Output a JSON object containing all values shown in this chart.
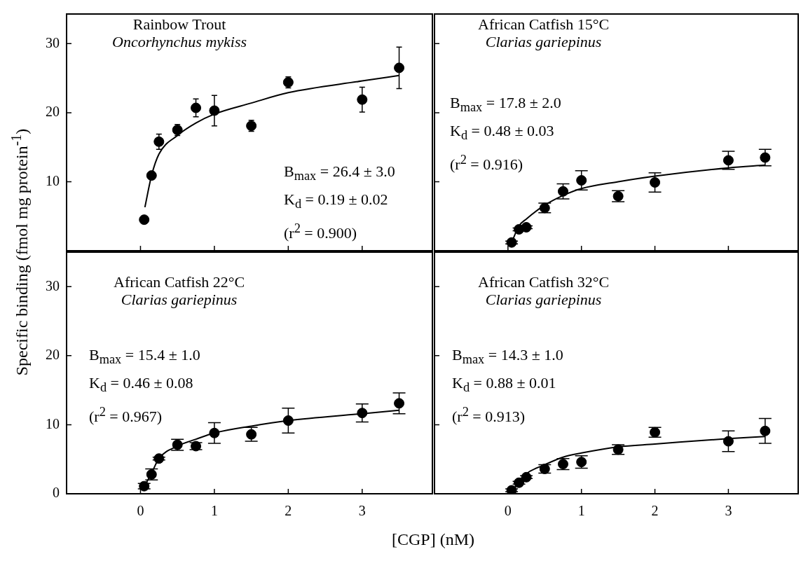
{
  "chart_data": [
    {
      "type": "scatter",
      "title": "Rainbow Trout",
      "subtitle": "Oncorhynchus mykiss",
      "ylabel": "Specific binding (fmol mg protein$^{-1}$)",
      "xlim": [
        -1,
        3.95
      ],
      "xticks": [
        0,
        1,
        2,
        3
      ],
      "ylim": [
        0,
        34.3
      ],
      "yticks": [
        10,
        20,
        30
      ],
      "tick_labels": "y",
      "annotations": [
        "B$_{max}$ = 26.4 ± 3.0",
        "K$_{d}$ = 0.19 ± 0.02",
        "(r$^{2}$ = 0.900)"
      ],
      "series": [
        {
          "type": "scatter",
          "color": "#000000",
          "marker": "circle",
          "x": [
            0.05,
            0.15,
            0.25,
            0.5,
            0.75,
            1,
            1.5,
            2,
            3,
            3.5
          ],
          "values": [
            4.5,
            10.9,
            15.8,
            17.5,
            20.7,
            20.3,
            18.1,
            24.4,
            21.9,
            26.5
          ],
          "errors": [
            null,
            null,
            1.1,
            0.8,
            1.3,
            2.2,
            0.8,
            0.8,
            1.8,
            3.0
          ]
        },
        {
          "type": "line",
          "color": "#000000",
          "marker": "none",
          "x": [
            0.06,
            0.15,
            0.25,
            0.5,
            0.75,
            1,
            1.5,
            2,
            3,
            3.5
          ],
          "values": [
            6.3,
            10.9,
            14.0,
            16.7,
            18.5,
            19.8,
            21.4,
            22.9,
            24.6,
            25.4
          ]
        }
      ]
    },
    {
      "type": "scatter",
      "title": "African Catfish 15°C",
      "subtitle": "Clarias gariepinus",
      "xlim": [
        -1,
        3.95
      ],
      "xticks": [
        0,
        1,
        2,
        3
      ],
      "ylim": [
        0,
        34.3
      ],
      "yticks": [
        10,
        20,
        30
      ],
      "tick_labels": false,
      "annotations": [
        "B$_{max}$ = 17.8 ± 2.0",
        "K$_{d}$ = 0.48 ± 0.03",
        "(r$^{2}$ = 0.916)"
      ],
      "series": [
        {
          "type": "scatter",
          "color": "#000000",
          "marker": "circle",
          "x": [
            0.05,
            0.15,
            0.25,
            0.5,
            0.75,
            1,
            1.5,
            2,
            3,
            3.5
          ],
          "values": [
            1.2,
            3.1,
            3.4,
            6.2,
            8.6,
            10.2,
            7.9,
            9.9,
            13.1,
            13.5
          ],
          "errors": [
            0.2,
            0.2,
            0.2,
            0.7,
            1.1,
            1.4,
            0.8,
            1.4,
            1.3,
            1.2
          ]
        },
        {
          "type": "line",
          "color": "#000000",
          "marker": "none",
          "x": [
            0.05,
            0.15,
            0.25,
            0.5,
            0.75,
            1,
            1.5,
            2,
            3,
            3.5
          ],
          "values": [
            1.2,
            3.6,
            4.6,
            6.6,
            8.0,
            9.0,
            10.0,
            10.8,
            12.0,
            12.4
          ]
        }
      ]
    },
    {
      "type": "scatter",
      "title": "African Catfish 22°C",
      "subtitle": "Clarias gariepinus",
      "xlabel": "[CGP] (nM)",
      "xlim": [
        -1,
        3.95
      ],
      "xticks": [
        0,
        1,
        2,
        3
      ],
      "ylim": [
        0,
        35
      ],
      "yticks": [
        0,
        10,
        20,
        30
      ],
      "annotations": [
        "B$_{max}$ = 15.4 ± 1.0",
        "K$_{d}$ = 0.46 ± 0.08",
        "(r$^{2}$ = 0.967)"
      ],
      "series": [
        {
          "type": "scatter",
          "color": "#000000",
          "marker": "circle",
          "x": [
            0.05,
            0.15,
            0.25,
            0.5,
            0.75,
            1,
            1.5,
            2,
            3,
            3.5
          ],
          "values": [
            1.1,
            2.8,
            5.1,
            7.1,
            6.9,
            8.8,
            8.6,
            10.6,
            11.7,
            13.1
          ],
          "errors": [
            0.4,
            0.8,
            0.2,
            0.8,
            0.5,
            1.5,
            1.0,
            1.8,
            1.3,
            1.5
          ]
        },
        {
          "type": "line",
          "color": "#000000",
          "marker": "none",
          "x": [
            0.06,
            0.15,
            0.25,
            0.5,
            0.75,
            1,
            1.5,
            2,
            3,
            3.5
          ],
          "values": [
            1.2,
            3.0,
            5.1,
            6.9,
            7.9,
            8.8,
            9.8,
            10.6,
            11.6,
            12.1
          ]
        }
      ]
    },
    {
      "type": "scatter",
      "title": "African Catfish 32°C",
      "subtitle": "Clarias gariepinus",
      "xlim": [
        -1,
        3.95
      ],
      "xticks": [
        0,
        1,
        2,
        3
      ],
      "ylim": [
        0,
        35
      ],
      "yticks": [
        0,
        10,
        20,
        30
      ],
      "tick_labels": "x",
      "annotations": [
        "B$_{max}$ = 14.3 ± 1.0",
        "K$_{d}$ = 0.88 ± 0.01",
        "(r$^{2}$ = 0.913)"
      ],
      "series": [
        {
          "type": "scatter",
          "color": "#000000",
          "marker": "circle",
          "x": [
            0.05,
            0.15,
            0.25,
            0.5,
            0.75,
            1,
            1.5,
            2,
            3,
            3.5
          ],
          "values": [
            0.5,
            1.6,
            2.4,
            3.6,
            4.3,
            4.6,
            6.4,
            8.9,
            7.6,
            9.1
          ],
          "errors": [
            0.2,
            0.2,
            0.2,
            0.6,
            0.8,
            0.9,
            0.7,
            0.7,
            1.5,
            1.8
          ]
        },
        {
          "type": "line",
          "color": "#000000",
          "marker": "none",
          "x": [
            0.05,
            0.15,
            0.25,
            0.5,
            0.75,
            1,
            1.5,
            2,
            3,
            3.5
          ],
          "values": [
            0.2,
            1.7,
            2.9,
            4.2,
            5.3,
            5.9,
            6.8,
            7.2,
            8.0,
            8.3
          ]
        }
      ]
    }
  ]
}
